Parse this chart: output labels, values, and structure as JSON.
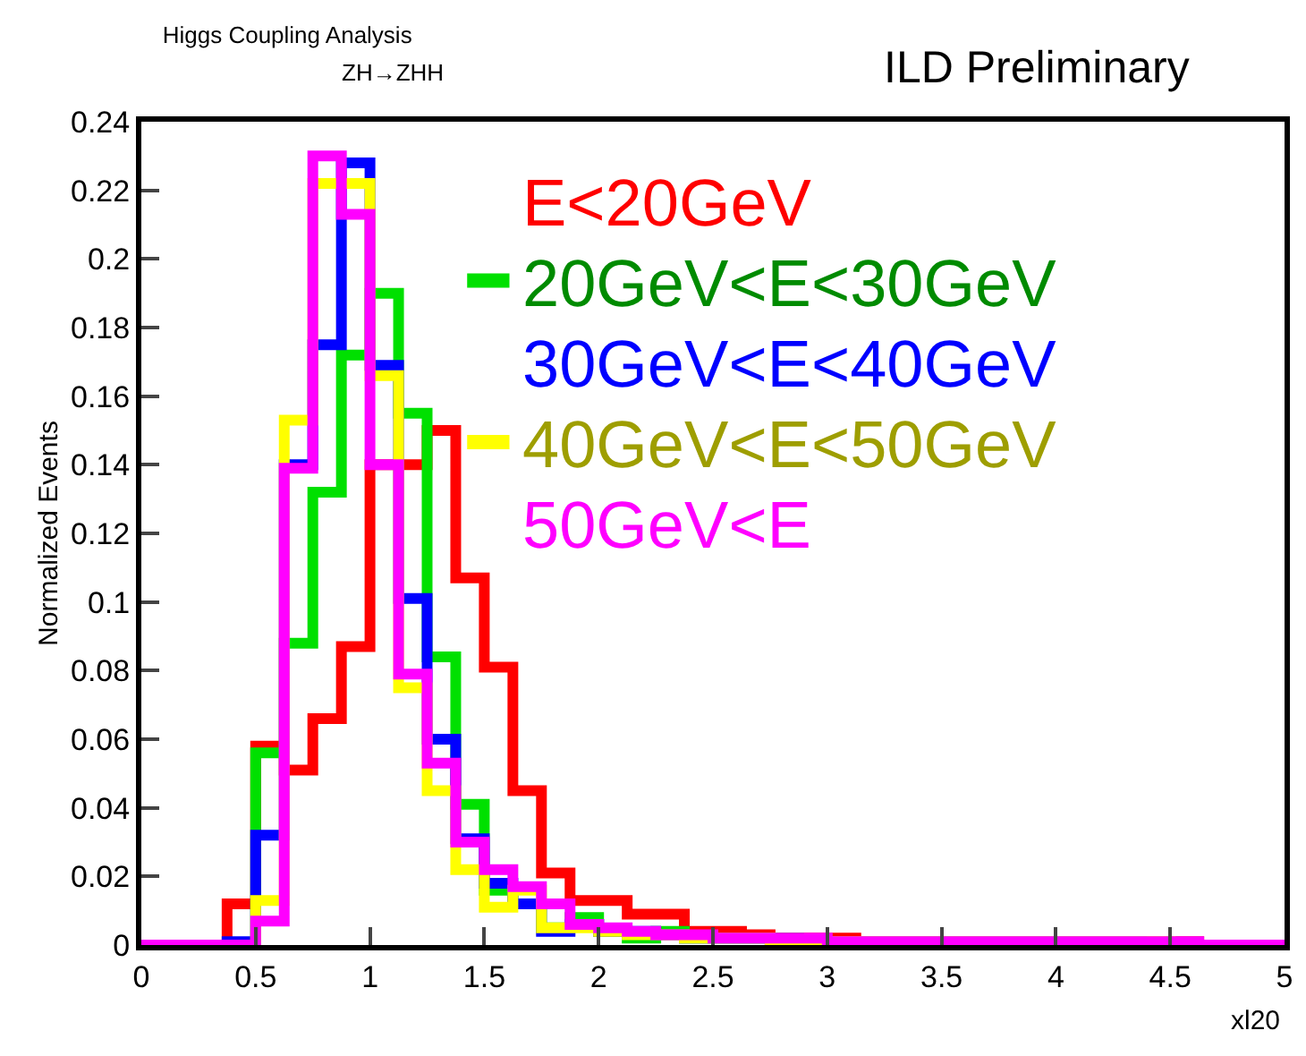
{
  "chart_data": {
    "type": "histogram",
    "title": "Higgs Coupling Analysis",
    "subtitle": "ZH→ZHH",
    "annotations": [
      "ILD Preliminary"
    ],
    "xlabel": "xl20",
    "ylabel": "Normalized Events",
    "bins": [
      0,
      0.125,
      0.25,
      0.375,
      0.5,
      0.625,
      0.75,
      0.875,
      1,
      1.125,
      1.25,
      1.375,
      1.5,
      1.625,
      1.75,
      1.875,
      2,
      2.125,
      2.25,
      2.375,
      2.5,
      2.625,
      2.75,
      2.875,
      3,
      3.125,
      3.25,
      3.375,
      3.5,
      3.625,
      3.75,
      3.875,
      4,
      4.125,
      4.25,
      4.375,
      4.5,
      4.625,
      4.75,
      4.875,
      5
    ],
    "series": [
      {
        "name": "E<20GeV",
        "color": "#ff0000",
        "values": [
          0,
          0,
          0,
          0.012,
          0.058,
          0.051,
          0.066,
          0.087,
          0.14,
          0.14,
          0.15,
          0.107,
          0.081,
          0.045,
          0.021,
          0.013,
          0.013,
          0.009,
          0.009,
          0.004,
          0.004,
          0.003,
          0.002,
          0.002,
          0.002,
          0.001,
          0.001,
          0.001,
          0.001,
          0.001,
          0.001,
          0.001,
          0.001,
          0.001,
          0.001,
          0.001,
          0.001,
          0,
          0,
          0
        ]
      },
      {
        "name": "20GeV<E<30GeV",
        "color": "#00e000",
        "values": [
          0,
          0,
          0,
          0,
          0.056,
          0.088,
          0.132,
          0.172,
          0.19,
          0.155,
          0.084,
          0.041,
          0.016,
          0.012,
          0.005,
          0.008,
          0.004,
          0.002,
          0.004,
          0.002,
          0.002,
          0.002,
          0.002,
          0.001,
          0.001,
          0.001,
          0.001,
          0.001,
          0.001,
          0.001,
          0.001,
          0.001,
          0.001,
          0.001,
          0.001,
          0,
          0,
          0,
          0,
          0
        ]
      },
      {
        "name": "30GeV<E<40GeV",
        "color": "#0000ff",
        "values": [
          0,
          0,
          0,
          0.001,
          0.032,
          0.14,
          0.175,
          0.228,
          0.169,
          0.101,
          0.06,
          0.031,
          0.018,
          0.012,
          0.004,
          0.006,
          0.004,
          0.004,
          0.003,
          0.002,
          0.002,
          0.002,
          0.001,
          0.001,
          0.001,
          0.001,
          0.001,
          0.001,
          0.001,
          0.001,
          0.001,
          0.001,
          0.001,
          0.001,
          0.001,
          0,
          0,
          0,
          0,
          0
        ]
      },
      {
        "name": "40GeV<E<50GeV",
        "color": "#ffff00",
        "values": [
          0,
          0,
          0,
          0,
          0.013,
          0.153,
          0.222,
          0.222,
          0.166,
          0.075,
          0.045,
          0.022,
          0.011,
          0.016,
          0.005,
          0.005,
          0.004,
          0.003,
          0.003,
          0.002,
          0.002,
          0.002,
          0.001,
          0.001,
          0.001,
          0.001,
          0.001,
          0.001,
          0.001,
          0.001,
          0.001,
          0.001,
          0.001,
          0.001,
          0.001,
          0.001,
          0,
          0,
          0,
          0
        ]
      },
      {
        "name": "50GeV<E",
        "color": "#ff00ff",
        "values": [
          0,
          0,
          0,
          0,
          0.007,
          0.139,
          0.23,
          0.213,
          0.14,
          0.079,
          0.053,
          0.03,
          0.022,
          0.017,
          0.012,
          0.006,
          0.005,
          0.004,
          0.003,
          0.003,
          0.002,
          0.002,
          0.002,
          0.002,
          0.001,
          0.001,
          0.001,
          0.001,
          0.001,
          0.001,
          0.001,
          0.001,
          0.001,
          0.001,
          0.001,
          0.001,
          0.001,
          0,
          0,
          0
        ]
      }
    ],
    "xlim": [
      0,
      5
    ],
    "xticks": [
      0,
      0.5,
      1,
      1.5,
      2,
      2.5,
      3,
      3.5,
      4,
      4.5,
      5
    ],
    "ylim": [
      0,
      0.24
    ],
    "yticks": [
      0,
      0.02,
      0.04,
      0.06,
      0.08,
      0.1,
      0.12,
      0.14,
      0.16,
      0.18,
      0.2,
      0.22,
      0.24
    ],
    "grid": false,
    "legend": "top right"
  }
}
